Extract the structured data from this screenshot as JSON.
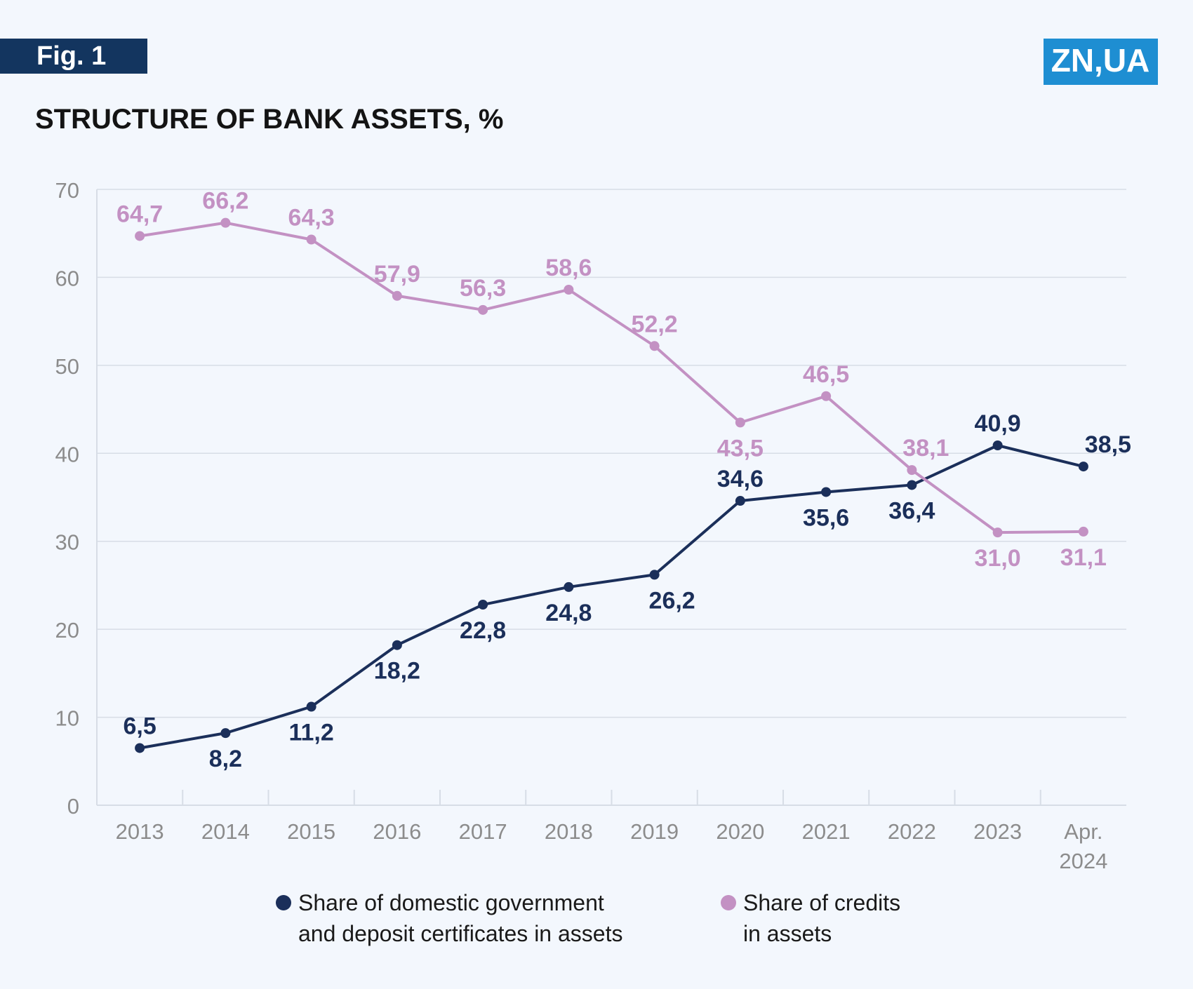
{
  "figure_label": "Fig. 1",
  "logo_text": "ZN,UA",
  "colors": {
    "navy": "#1b2f5a",
    "lilac": "#c391c3",
    "axis_text": "#8c8c8c",
    "grid": "#d7dde6",
    "logo_bg": "#1e8ed2"
  },
  "chart_data": {
    "type": "line",
    "title": "STRUCTURE OF BANK ASSETS, %",
    "xlabel": "",
    "ylabel": "",
    "ylim": [
      0,
      70
    ],
    "yticks": [
      "0",
      "10",
      "20",
      "30",
      "40",
      "50",
      "60",
      "70"
    ],
    "grid": true,
    "legend_position": "bottom",
    "categories": [
      [
        "2013"
      ],
      [
        "2014"
      ],
      [
        "2015"
      ],
      [
        "2016"
      ],
      [
        "2017"
      ],
      [
        "2018"
      ],
      [
        "2019"
      ],
      [
        "2020"
      ],
      [
        "2021"
      ],
      [
        "2022"
      ],
      [
        "2023"
      ],
      [
        "Apr.",
        "2024"
      ]
    ],
    "series": [
      {
        "name": [
          "Share of domestic government",
          "and deposit certificates in assets"
        ],
        "color": "#1b2f5a",
        "values": [
          6.5,
          8.2,
          11.2,
          18.2,
          22.8,
          24.8,
          26.2,
          34.6,
          35.6,
          36.4,
          40.9,
          38.5
        ],
        "labels": [
          "6,5",
          "8,2",
          "11,2",
          "18,2",
          "22,8",
          "24,8",
          "26,2",
          "34,6",
          "35,6",
          "36,4",
          "40,9",
          "38,5"
        ]
      },
      {
        "name": [
          "Share of credits",
          "in assets"
        ],
        "color": "#c391c3",
        "values": [
          64.7,
          66.2,
          64.3,
          57.9,
          56.3,
          58.6,
          52.2,
          43.5,
          46.5,
          38.1,
          31.0,
          31.1
        ],
        "labels": [
          "64,7",
          "66,2",
          "64,3",
          "57,9",
          "56,3",
          "58,6",
          "52,2",
          "43,5",
          "46,5",
          "38,1",
          "31,0",
          "31,1"
        ]
      }
    ]
  }
}
